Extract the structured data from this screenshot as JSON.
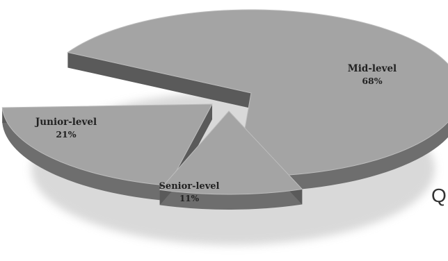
{
  "chart_data": {
    "type": "pie",
    "title": "",
    "slices": [
      {
        "label": "Mid-level",
        "value": 68,
        "value_label": "68%"
      },
      {
        "label": "Junior-level",
        "value": 21,
        "value_label": "21%"
      },
      {
        "label": "Senior-level",
        "value": 11,
        "value_label": "11%"
      }
    ],
    "style": "3d-exploded",
    "colors": {
      "top": "#a4a4a4",
      "side": "#6e6e6e",
      "shadow": "#c9c9c9",
      "text": "#222222"
    }
  },
  "edge_text": "Q"
}
